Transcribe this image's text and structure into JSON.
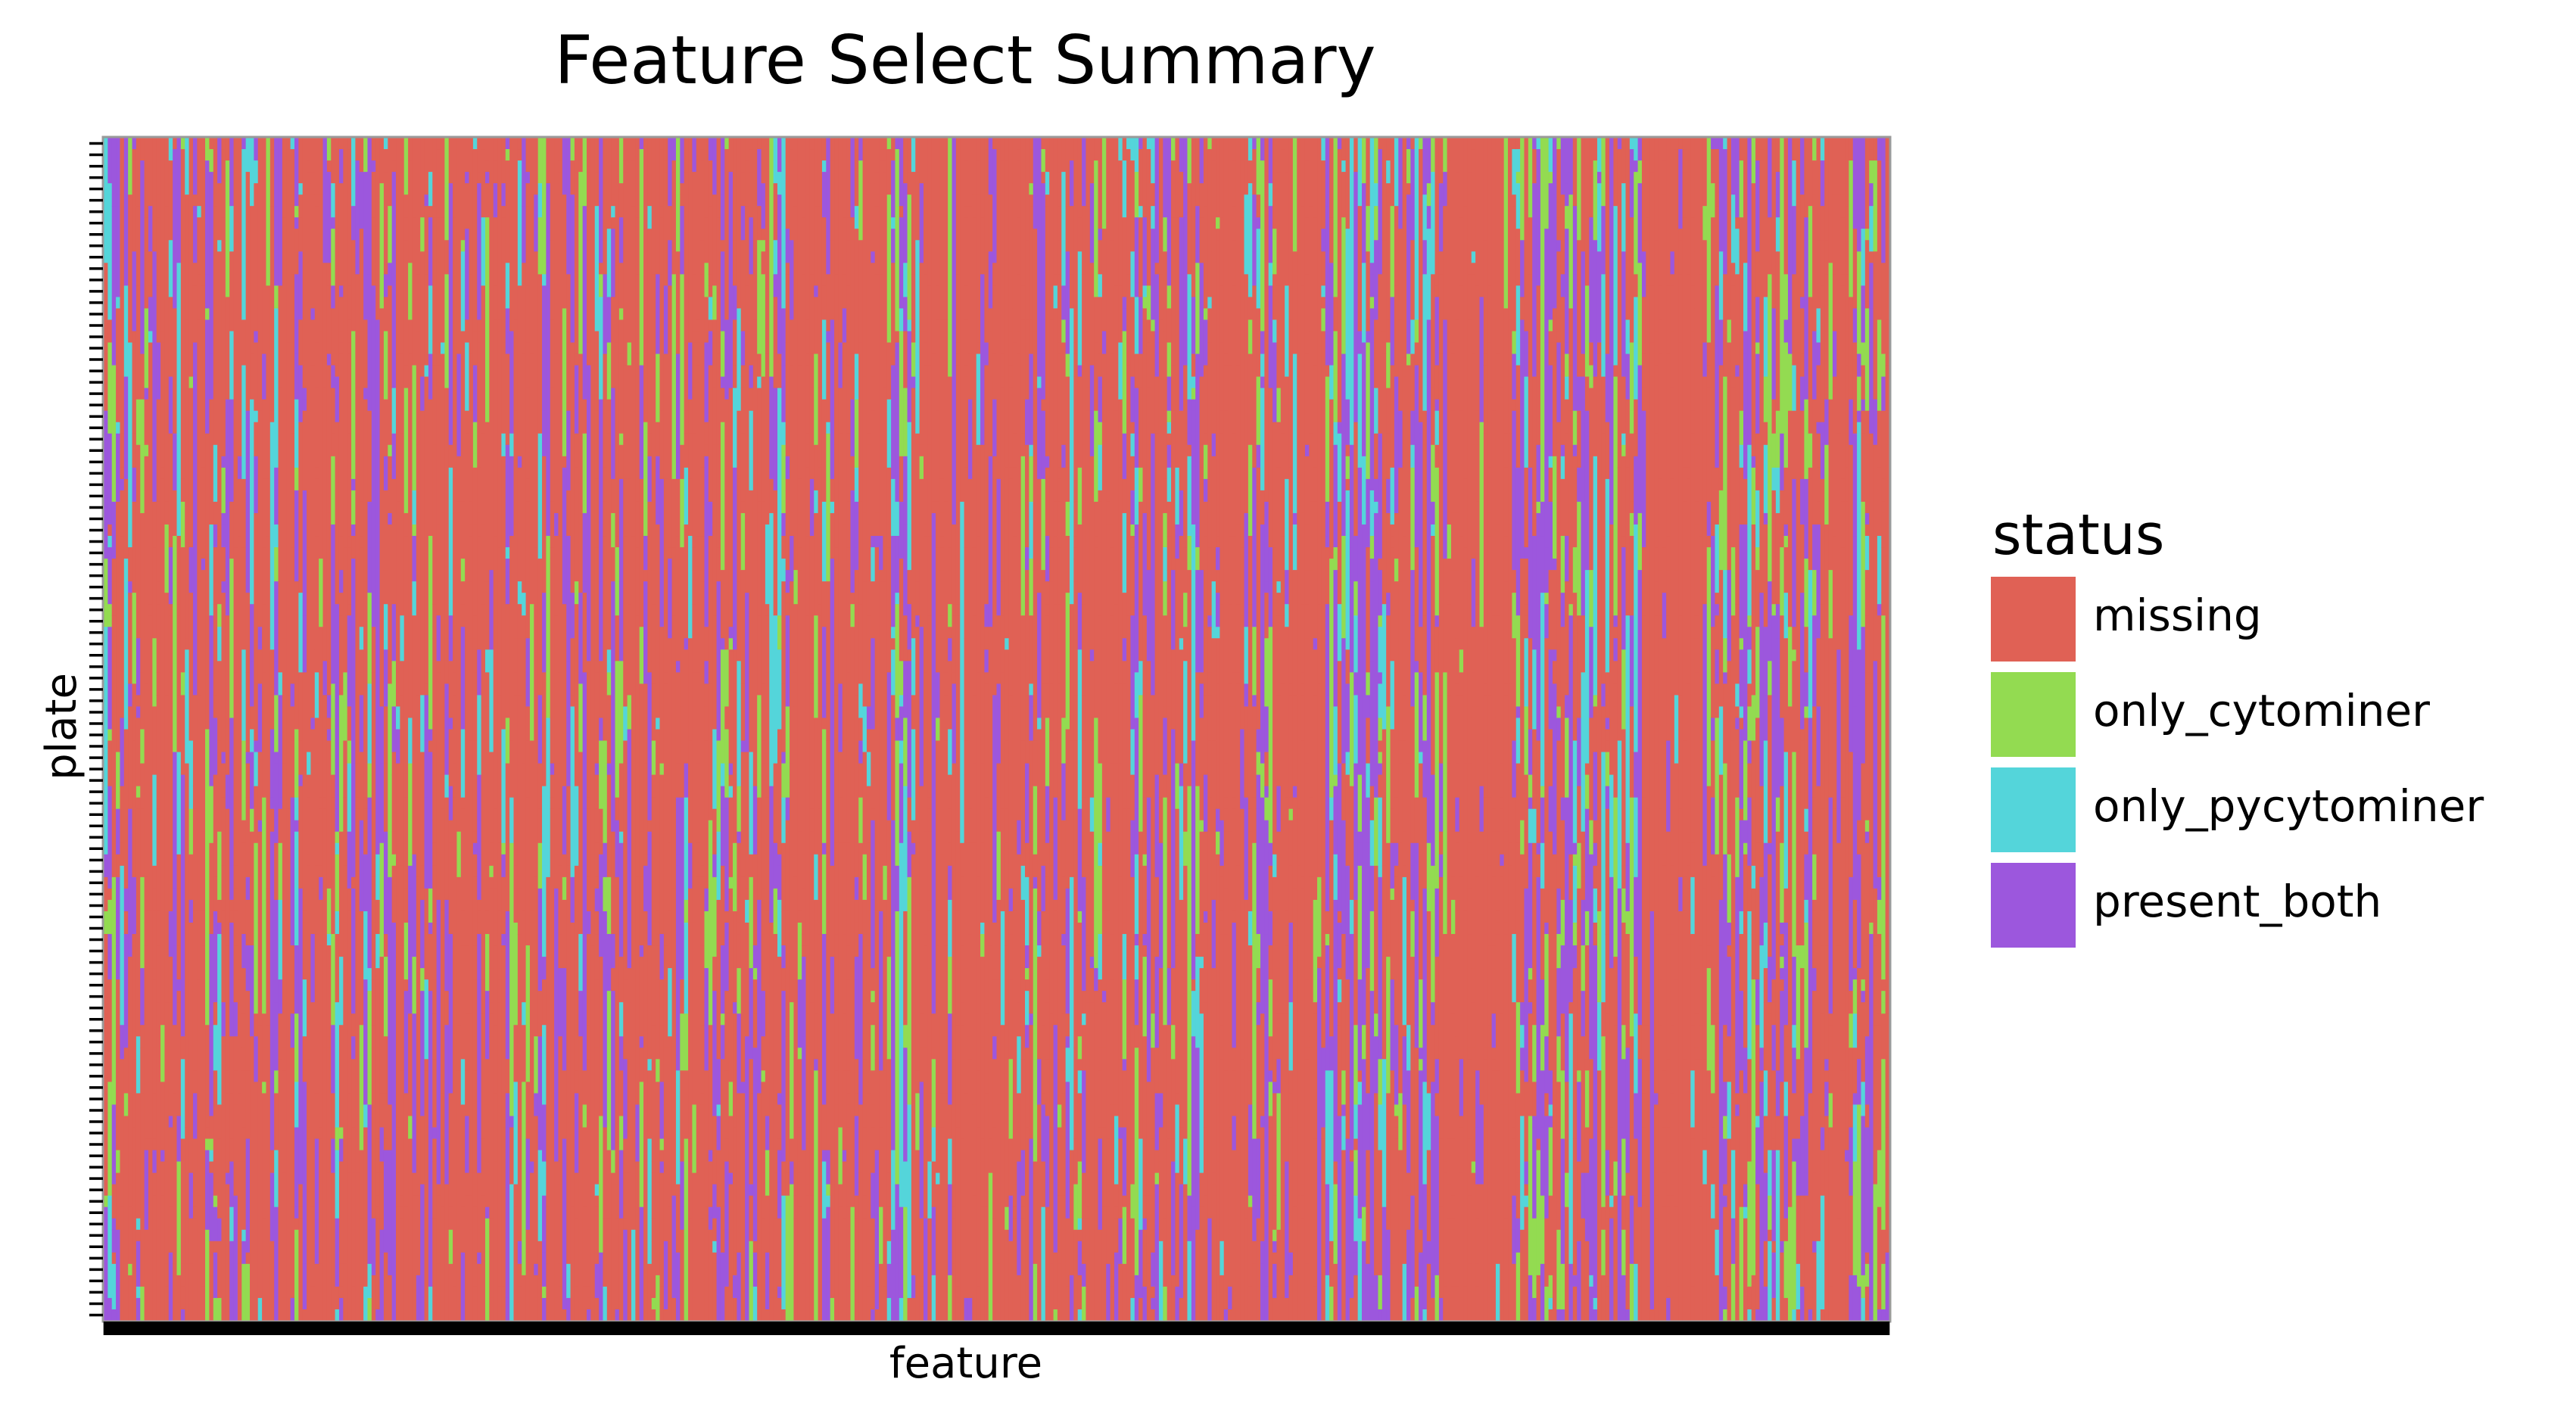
{
  "chart_data": {
    "type": "heatmap",
    "title": "Feature Select Summary",
    "xlabel": "feature",
    "ylabel": "plate",
    "x_tick_labels_visible": false,
    "y_tick_labels_visible": false,
    "grid": false,
    "legend": {
      "title": "status",
      "placement": "right",
      "entries": [
        {
          "name": "missing",
          "color": "#E06155"
        },
        {
          "name": "only_cytominer",
          "color": "#93DB51"
        },
        {
          "name": "only_pycytominer",
          "color": "#54D5DA"
        },
        {
          "name": "present_both",
          "color": "#9C57DD"
        }
      ]
    },
    "categories": [
      "missing",
      "only_cytominer",
      "only_pycytominer",
      "present_both"
    ],
    "columns_estimated": 440,
    "rows_estimated": 104,
    "column_profile": [
      [
        0.45,
        0.3,
        0.1,
        0.4,
        0.65,
        0.5,
        0.75,
        0.6,
        0.55,
        0.8,
        0.9,
        0.85,
        0.7,
        0.95,
        0.9,
        0.95,
        0.75,
        0.6,
        0.55,
        0.5,
        0.85,
        0.55,
        0.4,
        0.9,
        0.8,
        0.5,
        0.45,
        0.7,
        0.55,
        0.75,
        0.6,
        0.4,
        0.85,
        0.95,
        0.55,
        0.45,
        0.4,
        0.5,
        0.9,
        0.95,
        0.85,
        0.7,
        0.1,
        0.5,
        0.95,
        0.9,
        0.95,
        0.35,
        0.75,
        0.55,
        0.85,
        0.9,
        0.95,
        0.95,
        0.95,
        0.8,
        0.45,
        0.4,
        0.55,
        0.9,
        0.85,
        0.5,
        0.95,
        0.75,
        0.3,
        0.15,
        0.85,
        0.8,
        0.55,
        0.65,
        0.8,
        0.5,
        0.85,
        0.95,
        0.9,
        0.65,
        0.5,
        0.85,
        0.45,
        0.6,
        0.2,
        0.8,
        0.95,
        0.9,
        0.3,
        0.45,
        0.85,
        0.95,
        0.75,
        0.85,
        0.95,
        0.85,
        0.55,
        0.8,
        0.75,
        0.9,
        0.85,
        0.95,
        0.6,
        0.45,
        0.55,
        0.95,
        0.75,
        0.65,
        0.75,
        0.9,
        0.8,
        0.5,
        0.35,
        0.65,
        0.95,
        0.8,
        0.85,
        0.5,
        0.35,
        0.45,
        0.75,
        0.65,
        0.55,
        0.9,
        0.95,
        0.85,
        0.4,
        0.75,
        0.6,
        0.45,
        0.6,
        0.4,
        0.85,
        0.95,
        0.9,
        0.95,
        0.55,
        0.7,
        0.8,
        0.95,
        0.6,
        0.65,
        0.95,
        0.85,
        0.75,
        0.5,
        0.55,
        0.5,
        0.8,
        0.95,
        0.9,
        0.95,
        0.6,
        0.75,
        0.55,
        0.45,
        0.4,
        0.55,
        0.7,
        0.9,
        0.9,
        0.85,
        0.75,
        0.4,
        0.65,
        0.6,
        0.85,
        0.75,
        0.6,
        0.55,
        0.5,
        0.45,
        0.6,
        0.8,
        0.95,
        0.85,
        0.95,
        0.95,
        0.9,
        0.65,
        0.95,
        0.55,
        0.4,
        0.5,
        0.95,
        0.9,
        0.95,
        0.9,
        0.5,
        0.6,
        0.75,
        0.85,
        0.95,
        0.75,
        0.95,
        0.7,
        0.95,
        0.8,
        0.3,
        0.1,
        0.15,
        0.1,
        0.25,
        0.55,
        0.85,
        0.75,
        0.9,
        0.95,
        0.6,
        0.85,
        0.95,
        0.95,
        0.55,
        0.8,
        0.95,
        0.9,
        0.95,
        0.7,
        0.95,
        0.85,
        0.75,
        0.8,
        0.55,
        0.65,
        0.85,
        0.95,
        0.8,
        0.9,
        0.95,
        0.95,
        0.85,
        0.45,
        0.6,
        0.7,
        0.4,
        0.5,
        0.85,
        0.95,
        0.9,
        0.95,
        0.55,
        0.65,
        0.75,
        0.95,
        0.5,
        0.4,
        0.95,
        0.75,
        0.55,
        0.45,
        0.6,
        0.85,
        0.95,
        0.95,
        0.85,
        0.65,
        0.75,
        0.55,
        0.45,
        0.5,
        0.4,
        0.55,
        0.55,
        0.5,
        0.45,
        0.6,
        0.7,
        0.5,
        0.55,
        0.4,
        0.5,
        0.45,
        0.4,
        0.45,
        0.6,
        0.75,
        0.7,
        0.85,
        0.8,
        0.95,
        0.95,
        0.9,
        0.95,
        0.95,
        0.95,
        0.8,
        0.6,
        0.45,
        0.5,
        0.4,
        0.45,
        0.55,
        0.6,
        0.65,
        0.75,
        0.8,
        0.85,
        0.7,
        0.95,
        0.9,
        0.95,
        0.95,
        0.85,
        0.6,
        0.55,
        0.35,
        0.4,
        0.25,
        0.3,
        0.15,
        0.25,
        0.2,
        0.3,
        0.15,
        0.2,
        0.35,
        0.25,
        0.4,
        0.3,
        0.45,
        0.5,
        0.65,
        0.75,
        0.85,
        0.8,
        0.55,
        0.4,
        0.35,
        0.45,
        0.6,
        0.55,
        0.5,
        0.45,
        0.55,
        0.65,
        0.95,
        0.95,
        0.95,
        0.95,
        0.9,
        0.95,
        0.95,
        0.85,
        0.9,
        0.95,
        0.95,
        0.95,
        0.95,
        0.9,
        0.95,
        0.95,
        0.55,
        0.45,
        0.4,
        0.5,
        0.35,
        0.45,
        0.3,
        0.4,
        0.35,
        0.5,
        0.6,
        0.45,
        0.4,
        0.35,
        0.3,
        0.4,
        0.45,
        0.55,
        0.5,
        0.4,
        0.45,
        0.35,
        0.55,
        0.65,
        0.5,
        0.6,
        0.55,
        0.45,
        0.4,
        0.55,
        0.5,
        0.45,
        0.95,
        0.95,
        0.95,
        0.95,
        0.9,
        0.95,
        0.95,
        0.95,
        0.95,
        0.95,
        0.9,
        0.95,
        0.95,
        0.95,
        0.85,
        0.8,
        0.75,
        0.6,
        0.55,
        0.45,
        0.4,
        0.5,
        0.45,
        0.55,
        0.4,
        0.35,
        0.45,
        0.5,
        0.4,
        0.55,
        0.45,
        0.5,
        0.6,
        0.4,
        0.45,
        0.55,
        0.5,
        0.45,
        0.65,
        0.55,
        0.5,
        0.45,
        0.6,
        0.7,
        0.8,
        0.85,
        0.95,
        0.95,
        0.95,
        0.95,
        0.95
      ]
    ]
  }
}
